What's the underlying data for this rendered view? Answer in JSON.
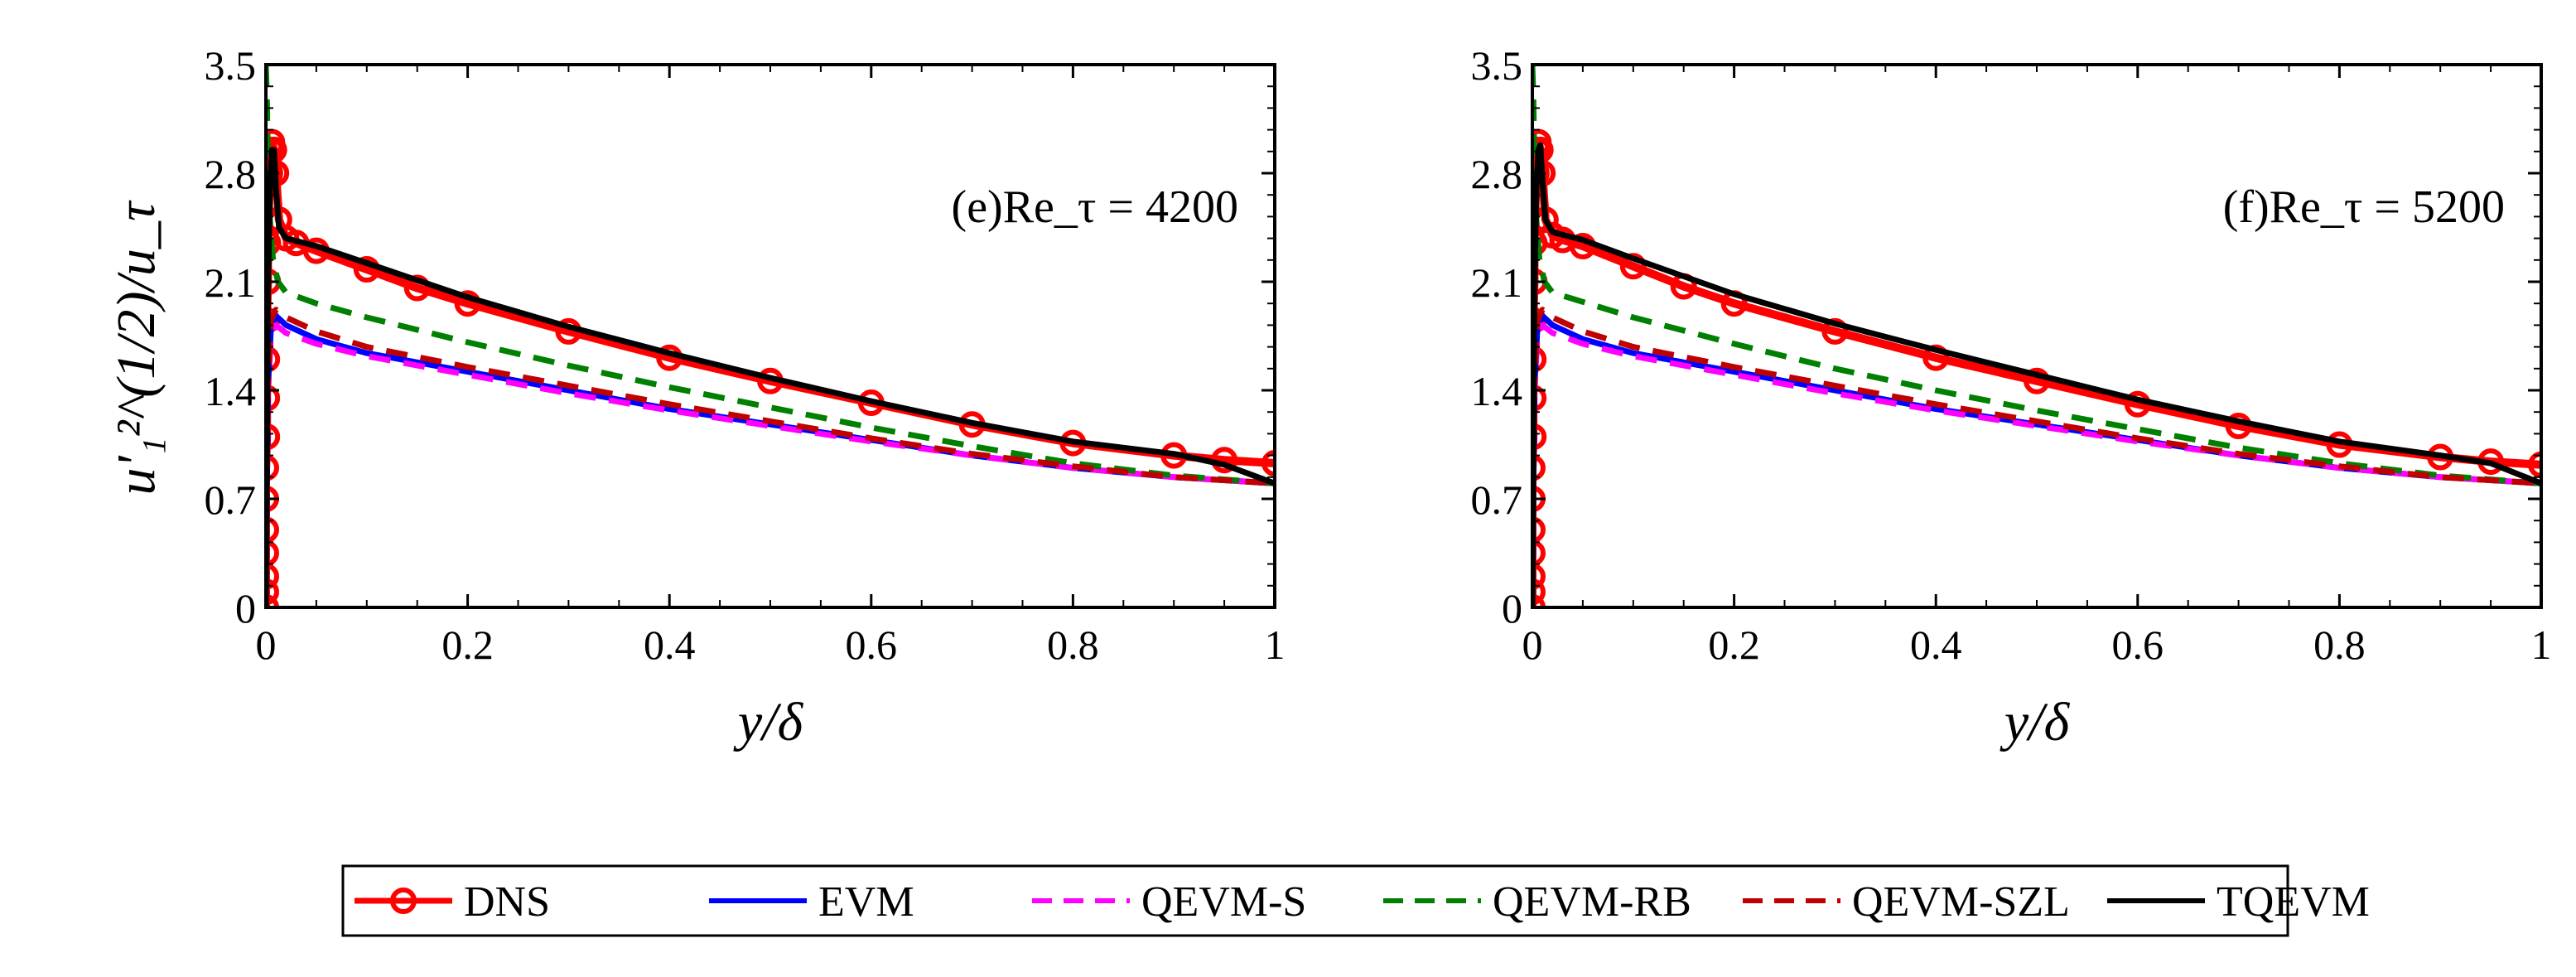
{
  "chart_data": [
    {
      "type": "line",
      "panel": "e",
      "annotation": "(e)Re_τ = 4200",
      "xlabel": "y/δ",
      "ylabel": "u'₁²^(1/2)/u_τ",
      "xlim": [
        0,
        1
      ],
      "ylim": [
        0,
        3.5
      ],
      "xticks": [
        "0",
        "0.2",
        "0.4",
        "0.6",
        "0.8",
        "1"
      ],
      "yticks": [
        "0",
        "0.7",
        "1.4",
        "2.1",
        "2.8",
        "3.5"
      ],
      "grid": false,
      "series": [
        {
          "name": "DNS",
          "color": "#ff0000",
          "style": "solid-circle",
          "x": [
            0.0,
            0.0,
            0.0,
            0.0,
            0.0,
            0.0,
            0.0,
            0.001,
            0.001,
            0.001,
            0.001,
            0.002,
            0.002,
            0.003,
            0.004,
            0.005,
            0.006,
            0.008,
            0.01,
            0.013,
            0.02,
            0.03,
            0.05,
            0.1,
            0.15,
            0.2,
            0.3,
            0.4,
            0.5,
            0.6,
            0.7,
            0.8,
            0.9,
            0.95,
            1.0
          ],
          "y": [
            0.0,
            0.1,
            0.2,
            0.35,
            0.5,
            0.7,
            0.9,
            1.1,
            1.35,
            1.6,
            1.85,
            2.1,
            2.35,
            2.6,
            2.8,
            2.95,
            3.0,
            2.95,
            2.8,
            2.5,
            2.38,
            2.35,
            2.3,
            2.18,
            2.06,
            1.96,
            1.78,
            1.61,
            1.46,
            1.32,
            1.18,
            1.06,
            0.98,
            0.95,
            0.93
          ]
        },
        {
          "name": "EVM",
          "color": "#0000ff",
          "style": "solid",
          "x": [
            0.0,
            0.002,
            0.005,
            0.01,
            0.02,
            0.05,
            0.1,
            0.2,
            0.3,
            0.4,
            0.5,
            0.6,
            0.7,
            0.8,
            0.9,
            1.0
          ],
          "y": [
            0.0,
            1.4,
            1.8,
            1.88,
            1.82,
            1.73,
            1.64,
            1.52,
            1.4,
            1.28,
            1.18,
            1.08,
            0.98,
            0.9,
            0.84,
            0.8
          ]
        },
        {
          "name": "QEVM-S",
          "color": "#ff00ff",
          "style": "dashed",
          "x": [
            0.0,
            0.002,
            0.005,
            0.01,
            0.02,
            0.05,
            0.1,
            0.2,
            0.3,
            0.4,
            0.5,
            0.6,
            0.7,
            0.8,
            0.9,
            1.0
          ],
          "y": [
            0.0,
            1.35,
            1.75,
            1.82,
            1.77,
            1.7,
            1.62,
            1.5,
            1.38,
            1.27,
            1.17,
            1.07,
            0.98,
            0.9,
            0.84,
            0.8
          ]
        },
        {
          "name": "QEVM-RB",
          "color": "#008000",
          "style": "dashed",
          "x": [
            0.0,
            0.001,
            0.002,
            0.004,
            0.007,
            0.012,
            0.02,
            0.05,
            0.1,
            0.2,
            0.3,
            0.4,
            0.5,
            0.6,
            0.7,
            0.8,
            0.9,
            1.0
          ],
          "y": [
            3.5,
            3.3,
            2.9,
            2.5,
            2.25,
            2.1,
            2.03,
            1.96,
            1.87,
            1.71,
            1.56,
            1.42,
            1.29,
            1.16,
            1.04,
            0.93,
            0.85,
            0.8
          ]
        },
        {
          "name": "QEVM-SZL",
          "color": "#c00000",
          "style": "dashed",
          "x": [
            0.0,
            0.002,
            0.005,
            0.01,
            0.02,
            0.05,
            0.1,
            0.2,
            0.3,
            0.4,
            0.5,
            0.6,
            0.7,
            0.8,
            0.9,
            1.0
          ],
          "y": [
            0.0,
            1.45,
            1.85,
            1.92,
            1.87,
            1.78,
            1.68,
            1.55,
            1.43,
            1.31,
            1.2,
            1.09,
            0.99,
            0.91,
            0.84,
            0.8
          ]
        },
        {
          "name": "TQEVM",
          "color": "#000000",
          "style": "solid",
          "x": [
            0.0,
            0.001,
            0.002,
            0.004,
            0.006,
            0.008,
            0.01,
            0.013,
            0.02,
            0.05,
            0.1,
            0.2,
            0.3,
            0.4,
            0.5,
            0.6,
            0.7,
            0.8,
            0.9,
            0.95,
            1.0
          ],
          "y": [
            0.0,
            1.0,
            2.0,
            2.7,
            2.95,
            2.95,
            2.7,
            2.45,
            2.38,
            2.33,
            2.22,
            2.0,
            1.81,
            1.64,
            1.48,
            1.33,
            1.19,
            1.07,
            0.99,
            0.92,
            0.8
          ]
        }
      ]
    },
    {
      "type": "line",
      "panel": "f",
      "annotation": "(f)Re_τ = 5200",
      "xlabel": "y/δ",
      "ylabel": "",
      "xlim": [
        0,
        1
      ],
      "ylim": [
        0,
        3.5
      ],
      "xticks": [
        "0",
        "0.2",
        "0.4",
        "0.6",
        "0.8",
        "1"
      ],
      "yticks": [
        "0",
        "0.7",
        "1.4",
        "2.1",
        "2.8",
        "3.5"
      ],
      "grid": false,
      "series": [
        {
          "name": "DNS",
          "color": "#ff0000",
          "style": "solid-circle",
          "x": [
            0.0,
            0.0,
            0.0,
            0.0,
            0.0,
            0.0,
            0.0,
            0.001,
            0.001,
            0.001,
            0.001,
            0.002,
            0.002,
            0.003,
            0.004,
            0.005,
            0.006,
            0.008,
            0.01,
            0.013,
            0.02,
            0.03,
            0.05,
            0.1,
            0.15,
            0.2,
            0.3,
            0.4,
            0.5,
            0.6,
            0.7,
            0.8,
            0.9,
            0.95,
            1.0
          ],
          "y": [
            0.0,
            0.1,
            0.2,
            0.35,
            0.5,
            0.7,
            0.9,
            1.1,
            1.35,
            1.6,
            1.85,
            2.1,
            2.35,
            2.6,
            2.8,
            2.95,
            3.0,
            2.95,
            2.8,
            2.5,
            2.4,
            2.37,
            2.33,
            2.2,
            2.07,
            1.96,
            1.78,
            1.61,
            1.46,
            1.31,
            1.17,
            1.05,
            0.97,
            0.94,
            0.92
          ]
        },
        {
          "name": "EVM",
          "color": "#0000ff",
          "style": "solid",
          "x": [
            0.0,
            0.002,
            0.005,
            0.01,
            0.02,
            0.05,
            0.1,
            0.2,
            0.3,
            0.4,
            0.5,
            0.6,
            0.7,
            0.8,
            0.9,
            1.0
          ],
          "y": [
            0.0,
            1.4,
            1.8,
            1.88,
            1.82,
            1.73,
            1.64,
            1.52,
            1.4,
            1.28,
            1.18,
            1.08,
            0.98,
            0.9,
            0.84,
            0.8
          ]
        },
        {
          "name": "QEVM-S",
          "color": "#ff00ff",
          "style": "dashed",
          "x": [
            0.0,
            0.002,
            0.005,
            0.01,
            0.02,
            0.05,
            0.1,
            0.2,
            0.3,
            0.4,
            0.5,
            0.6,
            0.7,
            0.8,
            0.9,
            1.0
          ],
          "y": [
            0.0,
            1.35,
            1.75,
            1.82,
            1.77,
            1.7,
            1.62,
            1.5,
            1.38,
            1.27,
            1.17,
            1.07,
            0.98,
            0.9,
            0.84,
            0.8
          ]
        },
        {
          "name": "QEVM-RB",
          "color": "#008000",
          "style": "dashed",
          "x": [
            0.0,
            0.001,
            0.002,
            0.004,
            0.007,
            0.012,
            0.02,
            0.05,
            0.1,
            0.2,
            0.3,
            0.4,
            0.5,
            0.6,
            0.7,
            0.8,
            0.9,
            1.0
          ],
          "y": [
            3.5,
            3.3,
            2.9,
            2.5,
            2.25,
            2.1,
            2.03,
            1.97,
            1.87,
            1.7,
            1.54,
            1.4,
            1.27,
            1.15,
            1.03,
            0.93,
            0.85,
            0.8
          ]
        },
        {
          "name": "QEVM-SZL",
          "color": "#c00000",
          "style": "dashed",
          "x": [
            0.0,
            0.002,
            0.005,
            0.01,
            0.02,
            0.05,
            0.1,
            0.2,
            0.3,
            0.4,
            0.5,
            0.6,
            0.7,
            0.8,
            0.9,
            1.0
          ],
          "y": [
            0.0,
            1.45,
            1.85,
            1.92,
            1.87,
            1.78,
            1.68,
            1.55,
            1.43,
            1.31,
            1.2,
            1.09,
            0.99,
            0.91,
            0.84,
            0.8
          ]
        },
        {
          "name": "TQEVM",
          "color": "#000000",
          "style": "solid",
          "x": [
            0.0,
            0.001,
            0.002,
            0.004,
            0.006,
            0.008,
            0.01,
            0.013,
            0.02,
            0.05,
            0.1,
            0.2,
            0.3,
            0.4,
            0.5,
            0.6,
            0.7,
            0.8,
            0.9,
            0.95,
            1.0
          ],
          "y": [
            0.0,
            1.0,
            2.0,
            2.7,
            2.95,
            2.98,
            2.75,
            2.5,
            2.42,
            2.37,
            2.25,
            2.02,
            1.83,
            1.66,
            1.5,
            1.34,
            1.2,
            1.07,
            0.98,
            0.93,
            0.8
          ]
        }
      ]
    }
  ],
  "legend": {
    "placement": "bottom-center",
    "items": [
      {
        "name": "DNS",
        "color": "#ff0000",
        "style": "solid-circle"
      },
      {
        "name": "EVM",
        "color": "#0000ff",
        "style": "solid"
      },
      {
        "name": "QEVM-S",
        "color": "#ff00ff",
        "style": "dashed"
      },
      {
        "name": "QEVM-RB",
        "color": "#008000",
        "style": "dashed"
      },
      {
        "name": "QEVM-SZL",
        "color": "#c00000",
        "style": "dashed"
      },
      {
        "name": "TQEVM",
        "color": "#000000",
        "style": "solid"
      }
    ]
  }
}
